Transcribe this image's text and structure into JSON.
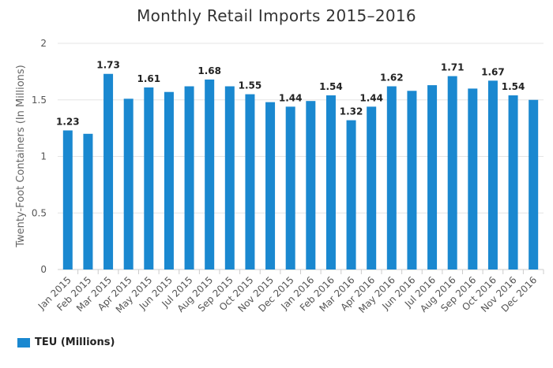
{
  "chart_data": {
    "type": "bar",
    "title": "Monthly Retail Imports 2015–2016",
    "ylabel": "Twenty-Foot Containers (In Millions)",
    "xlabel": "",
    "ylim": [
      0,
      2
    ],
    "yticks": [
      "0",
      "0.5",
      "1",
      "1.5",
      "2"
    ],
    "grid": true,
    "legend_position": "bottom-left",
    "bar_color": "#1a88d0",
    "categories": [
      "Jan 2015",
      "Feb 2015",
      "Mar 2015",
      "Apr 2015",
      "May 2015",
      "Jun 2015",
      "Jul 2015",
      "Aug 2015",
      "Sep 2015",
      "Oct 2015",
      "Nov 2015",
      "Dec 2015",
      "Jan 2016",
      "Feb 2016",
      "Mar 2016",
      "Apr 2016",
      "May 2016",
      "Jun 2016",
      "Jul 2016",
      "Aug 2016",
      "Sep 2016",
      "Oct 2016",
      "Nov 2016",
      "Dec 2016"
    ],
    "series": [
      {
        "name": "TEU (Millions)",
        "values": [
          1.23,
          1.2,
          1.73,
          1.51,
          1.61,
          1.57,
          1.62,
          1.68,
          1.62,
          1.55,
          1.48,
          1.44,
          1.49,
          1.54,
          1.32,
          1.44,
          1.62,
          1.58,
          1.63,
          1.71,
          1.6,
          1.67,
          1.54,
          1.5
        ]
      }
    ],
    "data_labels": [
      {
        "index": 0,
        "text": "1.23"
      },
      {
        "index": 2,
        "text": "1.73"
      },
      {
        "index": 4,
        "text": "1.61"
      },
      {
        "index": 7,
        "text": "1.68"
      },
      {
        "index": 9,
        "text": "1.55"
      },
      {
        "index": 11,
        "text": "1.44"
      },
      {
        "index": 13,
        "text": "1.54"
      },
      {
        "index": 14,
        "text": "1.32"
      },
      {
        "index": 15,
        "text": "1.44"
      },
      {
        "index": 16,
        "text": "1.62"
      },
      {
        "index": 19,
        "text": "1.71"
      },
      {
        "index": 21,
        "text": "1.67"
      },
      {
        "index": 22,
        "text": "1.54"
      }
    ]
  }
}
